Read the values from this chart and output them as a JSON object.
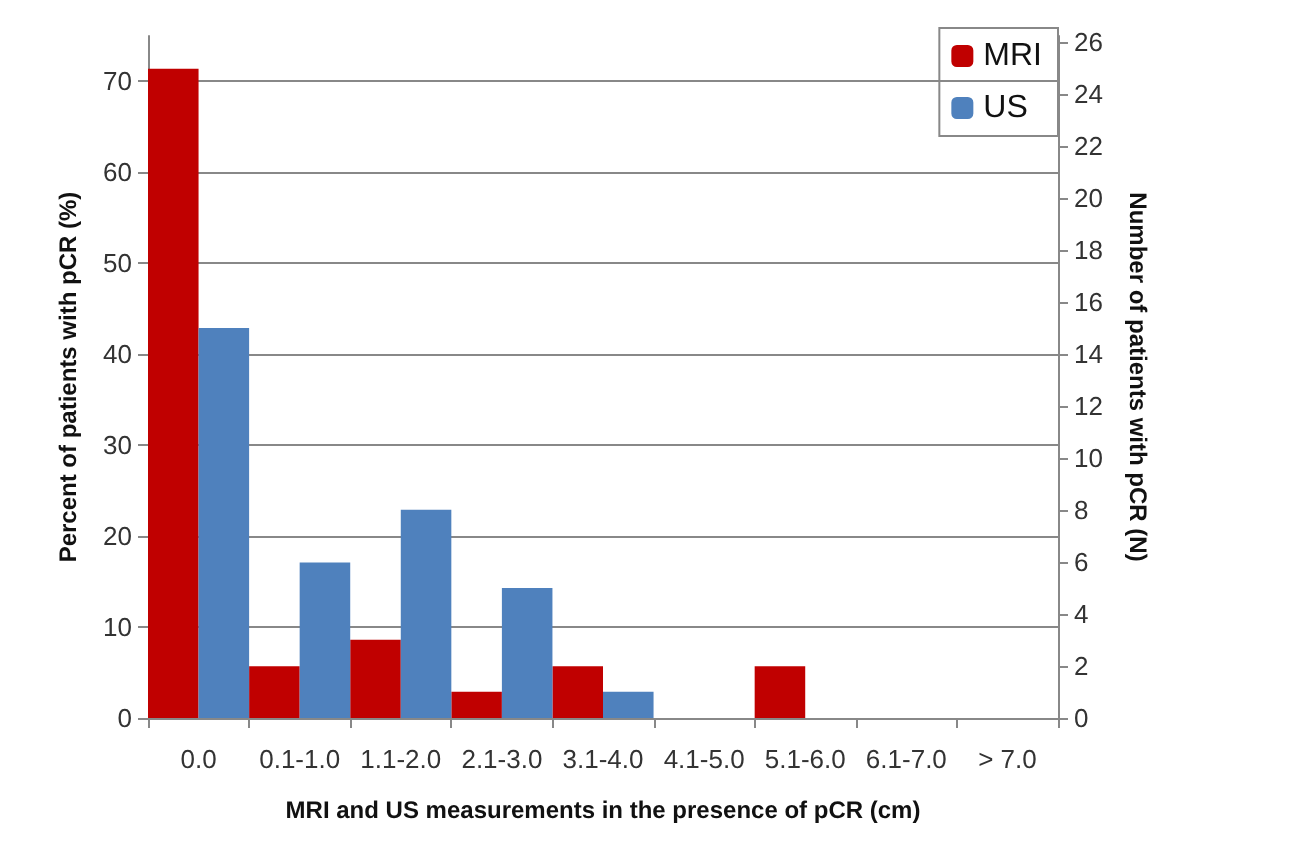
{
  "chart_data": {
    "type": "bar",
    "xlabel": "MRI and US measurements in the presence of pCR (cm)",
    "ylabel": "Percent of patients with pCR (%)",
    "y2label": "Number of patients with pCR (N)",
    "categories": [
      "0.0",
      "0.1-1.0",
      "1.1-2.0",
      "2.1-3.0",
      "3.1-4.0",
      "4.1-5.0",
      "5.1-6.0",
      "6.1-7.0",
      "> 7.0"
    ],
    "series": [
      {
        "name": "MRI",
        "color": "#c00000",
        "values": [
          71.4,
          5.7,
          8.6,
          2.9,
          5.7,
          0,
          5.7,
          0,
          0
        ]
      },
      {
        "name": "US",
        "color": "#4f81bd",
        "values": [
          42.9,
          17.1,
          22.9,
          14.3,
          2.9,
          0,
          0,
          0,
          0
        ]
      }
    ],
    "ylim": [
      0,
      75
    ],
    "yticks": [
      0,
      10,
      20,
      30,
      40,
      50,
      60,
      70
    ],
    "y2lim": [
      0,
      26.25
    ],
    "y2ticks": [
      0,
      2,
      4,
      6,
      8,
      10,
      12,
      14,
      16,
      18,
      20,
      22,
      24,
      26
    ],
    "grid": "y",
    "legend": "top right"
  }
}
